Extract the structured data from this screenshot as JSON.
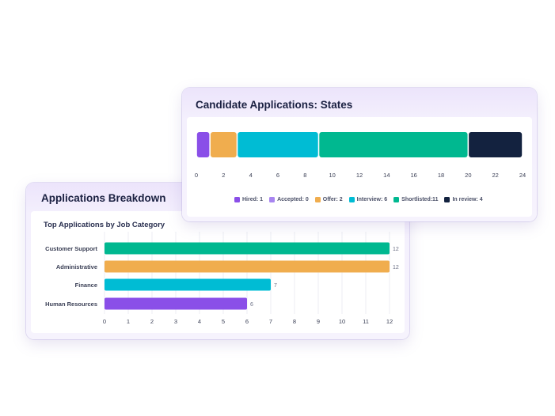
{
  "breakdown_card": {
    "title": "Applications Breakdown",
    "subtitle": "Top Applications by Job Category"
  },
  "states_card": {
    "title": "Candidate Applications: States"
  },
  "chart_data": [
    {
      "type": "bar",
      "orientation": "horizontal",
      "title": "Top Applications by Job Category",
      "categories": [
        "Customer Support",
        "Administrative",
        "Finance",
        "Human Resources"
      ],
      "values": [
        12,
        12,
        7,
        6
      ],
      "colors": [
        "#00b890",
        "#f0ad4e",
        "#00bcd4",
        "#8a4fe8"
      ],
      "xlim": [
        0,
        12
      ],
      "x_ticks": [
        "0",
        "1",
        "2",
        "3",
        "4",
        "5",
        "6",
        "7",
        "8",
        "9",
        "10",
        "11",
        "12"
      ],
      "grid": true
    },
    {
      "type": "bar",
      "orientation": "horizontal",
      "stacked": true,
      "title": "Candidate Applications: States",
      "xlim": [
        0,
        24
      ],
      "x_ticks": [
        "0",
        "2",
        "4",
        "6",
        "8",
        "10",
        "12",
        "14",
        "16",
        "18",
        "20",
        "22",
        "24"
      ],
      "series": [
        {
          "name": "Hired",
          "value": 1,
          "color": "#8a4fe8",
          "legend": "Hired: 1"
        },
        {
          "name": "Accepted",
          "value": 0,
          "color": "#a885f0",
          "legend": "Accepted: 0"
        },
        {
          "name": "Offer",
          "value": 2,
          "color": "#f0ad4e",
          "legend": "Offer: 2"
        },
        {
          "name": "Interview",
          "value": 6,
          "color": "#00bcd4",
          "legend": "Interview: 6"
        },
        {
          "name": "Shortlisted",
          "value": 11,
          "color": "#00b890",
          "legend": "Shortlisted:11"
        },
        {
          "name": "In review",
          "value": 4,
          "color": "#13223f",
          "legend": "In review: 4"
        }
      ],
      "legend_position": "bottom"
    }
  ]
}
